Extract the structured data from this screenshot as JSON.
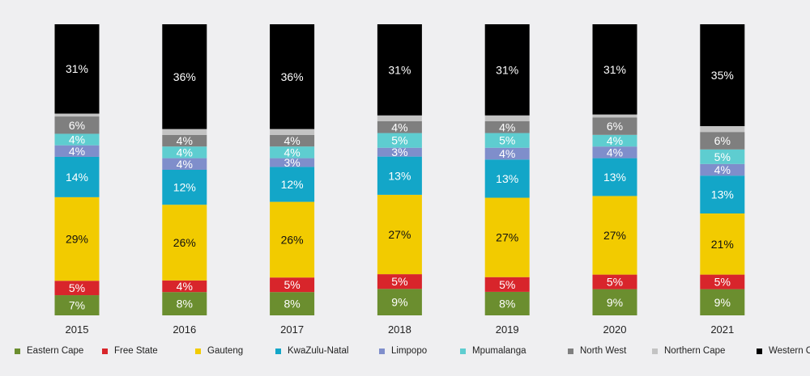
{
  "chart_data": {
    "type": "bar",
    "stacked": true,
    "title": "",
    "xlabel": "",
    "ylabel": "",
    "ylim": [
      0,
      100
    ],
    "legend_position": "bottom",
    "categories": [
      "2015",
      "2016",
      "2017",
      "2018",
      "2019",
      "2020",
      "2021"
    ],
    "series": [
      {
        "name": "Eastern Cape",
        "color": "#6b8e2f",
        "text_color": "#ffffff",
        "show_labels": true,
        "values": [
          7,
          8,
          8,
          9,
          8,
          9,
          9
        ]
      },
      {
        "name": "Free State",
        "color": "#d8252b",
        "text_color": "#ffffff",
        "show_labels": true,
        "values": [
          5,
          4,
          5,
          5,
          5,
          5,
          5
        ]
      },
      {
        "name": "Gauteng",
        "color": "#f2cb00",
        "text_color": "#111111",
        "show_labels": true,
        "values": [
          29,
          26,
          26,
          27,
          27,
          27,
          21
        ]
      },
      {
        "name": "KwaZulu-Natal",
        "color": "#13a6c8",
        "text_color": "#ffffff",
        "show_labels": true,
        "values": [
          14,
          12,
          12,
          13,
          13,
          13,
          13
        ]
      },
      {
        "name": "Limpopo",
        "color": "#7f8ecb",
        "text_color": "#ffffff",
        "show_labels": true,
        "values": [
          4,
          4,
          3,
          3,
          4,
          4,
          4
        ]
      },
      {
        "name": "Mpumalanga",
        "color": "#5ecdd0",
        "text_color": "#ffffff",
        "show_labels": true,
        "values": [
          4,
          4,
          4,
          5,
          5,
          4,
          5
        ]
      },
      {
        "name": "North West",
        "color": "#7f7f7f",
        "text_color": "#ffffff",
        "show_labels": true,
        "values": [
          6,
          4,
          4,
          4,
          4,
          6,
          6
        ]
      },
      {
        "name": "Northern Cape",
        "color": "#c3c3c3",
        "text_color": "#ffffff",
        "show_labels": false,
        "values": [
          1,
          2,
          2,
          2,
          2,
          1,
          2
        ]
      },
      {
        "name": "Western Cape",
        "color": "#000000",
        "text_color": "#ffffff",
        "show_labels": true,
        "values": [
          31,
          36,
          36,
          31,
          31,
          31,
          35
        ]
      }
    ]
  }
}
